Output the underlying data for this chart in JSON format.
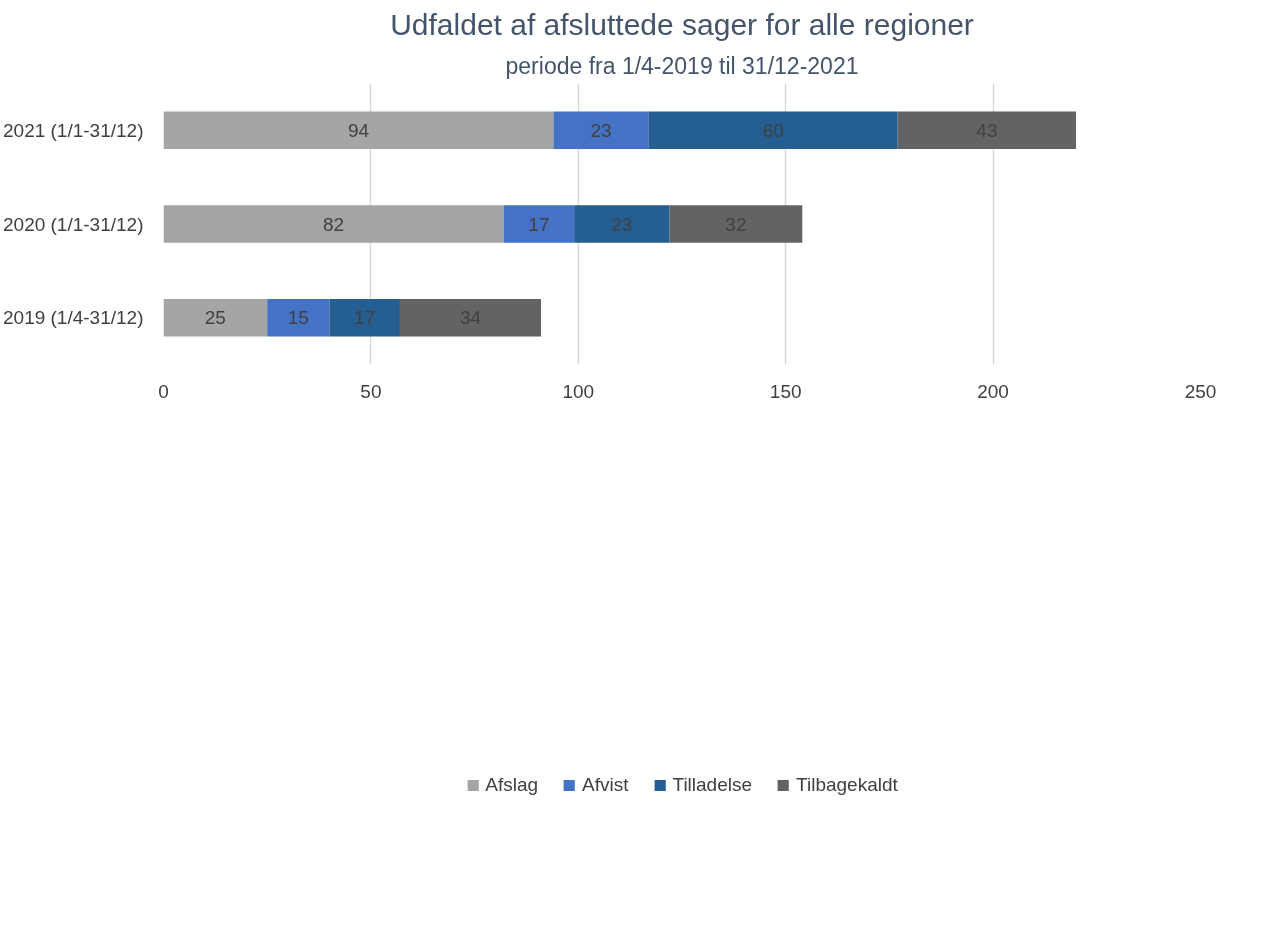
{
  "chart_data": {
    "type": "bar",
    "orientation": "horizontal",
    "stacked": true,
    "title": "Udfaldet af afsluttede sager for alle regioner",
    "subtitle": "periode fra 1/4-2019 til 31/12-2021",
    "categories": [
      "2021 (1/1-31/12)",
      "2020 (1/1-31/12)",
      "2019 (1/4-31/12)"
    ],
    "series": [
      {
        "name": "Afslag",
        "color": "#a5a5a5",
        "values": [
          94,
          82,
          25
        ]
      },
      {
        "name": "Afvist",
        "color": "#4472c4",
        "values": [
          23,
          17,
          15
        ]
      },
      {
        "name": "Tilladelse",
        "color": "#255e91",
        "values": [
          60,
          23,
          17
        ]
      },
      {
        "name": "Tilbagekaldt",
        "color": "#636363",
        "values": [
          43,
          32,
          34
        ]
      }
    ],
    "xlim": [
      0,
      250
    ],
    "xticks": [
      0,
      50,
      100,
      150,
      200,
      250
    ],
    "grid": "x",
    "legend": "bottom",
    "data_labels": true
  }
}
